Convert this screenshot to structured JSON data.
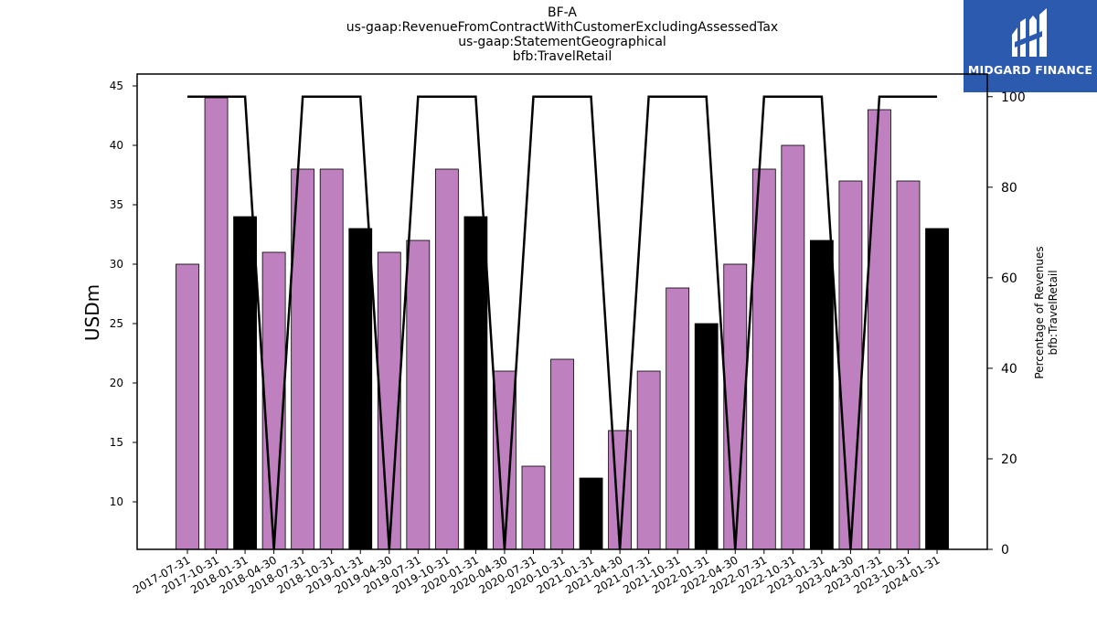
{
  "titles": {
    "line1": "BF-A",
    "line2": "us-gaap:RevenueFromContractWithCustomerExcludingAssessedTax",
    "line3": "us-gaap:StatementGeographical",
    "line4": "bfb:TravelRetail"
  },
  "logo": {
    "text": "MIDGARD FINANCE",
    "bg_color": "#2b5aae"
  },
  "chart_data": {
    "type": "bar",
    "categories": [
      "2017-07-31",
      "2017-10-31",
      "2018-01-31",
      "2018-04-30",
      "2018-07-31",
      "2018-10-31",
      "2019-01-31",
      "2019-04-30",
      "2019-07-31",
      "2019-10-31",
      "2020-01-31",
      "2020-04-30",
      "2020-07-31",
      "2020-10-31",
      "2021-01-31",
      "2021-04-30",
      "2021-07-31",
      "2021-10-31",
      "2022-01-31",
      "2022-04-30",
      "2022-07-31",
      "2022-10-31",
      "2023-01-31",
      "2023-04-30",
      "2023-07-31",
      "2023-10-31",
      "2024-01-31"
    ],
    "values": [
      30,
      44,
      34,
      31,
      38,
      38,
      33,
      31,
      32,
      38,
      34,
      21,
      13,
      22,
      12,
      16,
      21,
      28,
      25,
      30,
      38,
      40,
      32,
      37,
      43,
      37,
      33
    ],
    "highlight_indices": [
      2,
      6,
      10,
      14,
      18,
      22,
      26
    ],
    "bar_color": "#bf80bf",
    "highlight_color": "#000000",
    "ylabel": "USDm",
    "ylim": [
      6,
      46
    ],
    "yticks": [
      10,
      15,
      20,
      25,
      30,
      35,
      40,
      45
    ],
    "secondary": {
      "ylabel_line1": "Percentage of Revenues",
      "ylabel_line2": "bfb:TravelRetail",
      "ylim": [
        0,
        105
      ],
      "yticks": [
        0,
        20,
        40,
        60,
        80,
        100
      ],
      "values": [
        100,
        100,
        100,
        0,
        100,
        100,
        100,
        0,
        100,
        100,
        100,
        0,
        100,
        100,
        100,
        0,
        100,
        100,
        100,
        0,
        100,
        100,
        100,
        0,
        100,
        100,
        100
      ],
      "line_color": "#000000"
    }
  }
}
